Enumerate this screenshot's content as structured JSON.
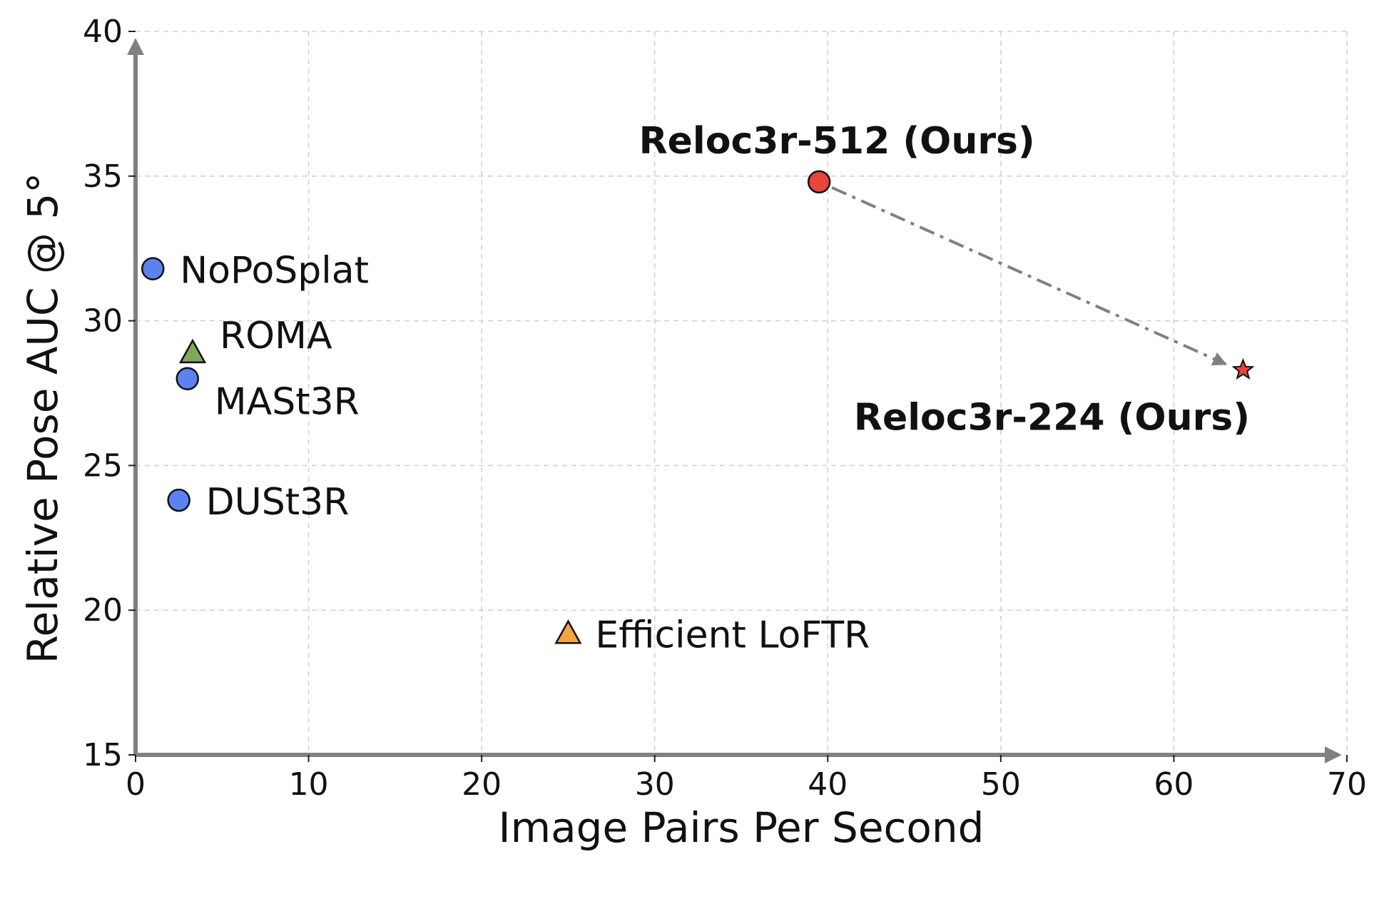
{
  "chart_data": {
    "type": "scatter",
    "title": "",
    "xlabel": "Image Pairs Per Second",
    "ylabel": "Relative Pose AUC @ 5°",
    "xlim": [
      0,
      70
    ],
    "ylim": [
      15,
      40
    ],
    "xticks": [
      0,
      10,
      20,
      30,
      40,
      50,
      60,
      70
    ],
    "yticks": [
      15,
      20,
      25,
      30,
      35,
      40
    ],
    "grid": true,
    "points": [
      {
        "label": "NoPoSplat",
        "x": 1.0,
        "y": 31.8,
        "marker": "circle",
        "color": "#5b82f0",
        "bold": false
      },
      {
        "label": "ROMA",
        "x": 3.3,
        "y": 28.9,
        "marker": "triangle",
        "color": "#7fa85a",
        "bold": false
      },
      {
        "label": "MASt3R",
        "x": 3.0,
        "y": 28.0,
        "marker": "circle",
        "color": "#5b82f0",
        "bold": false
      },
      {
        "label": "DUSt3R",
        "x": 2.5,
        "y": 23.8,
        "marker": "circle",
        "color": "#5b82f0",
        "bold": false
      },
      {
        "label": "Efficient LoFTR",
        "x": 25.0,
        "y": 19.2,
        "marker": "triangle",
        "color": "#f2a540",
        "bold": false
      },
      {
        "label": "Reloc3r-512 (Ours)",
        "x": 39.5,
        "y": 34.8,
        "marker": "circle",
        "color": "#e8453c",
        "bold": true
      },
      {
        "label": "Reloc3r-224 (Ours)",
        "x": 64.0,
        "y": 28.3,
        "marker": "star",
        "color": "#e8453c",
        "bold": true
      }
    ],
    "annotations": [
      {
        "type": "arrow",
        "from": [
          39.5,
          34.8
        ],
        "to": [
          63.0,
          28.5
        ],
        "style": "dash-dot",
        "color": "#808080"
      }
    ]
  }
}
